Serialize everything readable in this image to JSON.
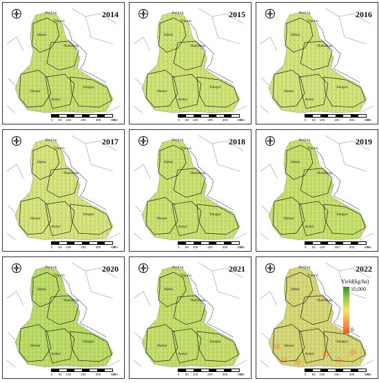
{
  "panels": [
    {
      "year": "2014",
      "tint": "#c7de6e"
    },
    {
      "year": "2015",
      "tint": "#cfe177"
    },
    {
      "year": "2016",
      "tint": "#d4e27c"
    },
    {
      "year": "2017",
      "tint": "#d8e37f"
    },
    {
      "year": "2018",
      "tint": "#c9df70"
    },
    {
      "year": "2019",
      "tint": "#c6de6b"
    },
    {
      "year": "2020",
      "tint": "#b9d964"
    },
    {
      "year": "2021",
      "tint": "#c3dc69"
    },
    {
      "year": "2022",
      "tint": "#d9d477"
    }
  ],
  "region_labels": {
    "beijing": "Beijing",
    "tianjin": "Tianjin",
    "hebei": "Hebei",
    "shandong": "Shandong",
    "henan": "Henan",
    "anhui": "Anhui",
    "jiangsu": "Jiangsu"
  },
  "scale": {
    "ticks": [
      "0",
      "50",
      "100",
      "200",
      "300",
      "400"
    ],
    "unit": "km"
  },
  "legend": {
    "title": "Yield(kg/ha)",
    "max": "10,000",
    "min": "0",
    "colors": [
      "#2e8b3a",
      "#9cc94b",
      "#f2e66a",
      "#f6a24c",
      "#ee5a2e"
    ]
  },
  "colors": {
    "boundary": "#222222",
    "coast": "#1f3c8a",
    "outline": "#9a9a9a"
  }
}
